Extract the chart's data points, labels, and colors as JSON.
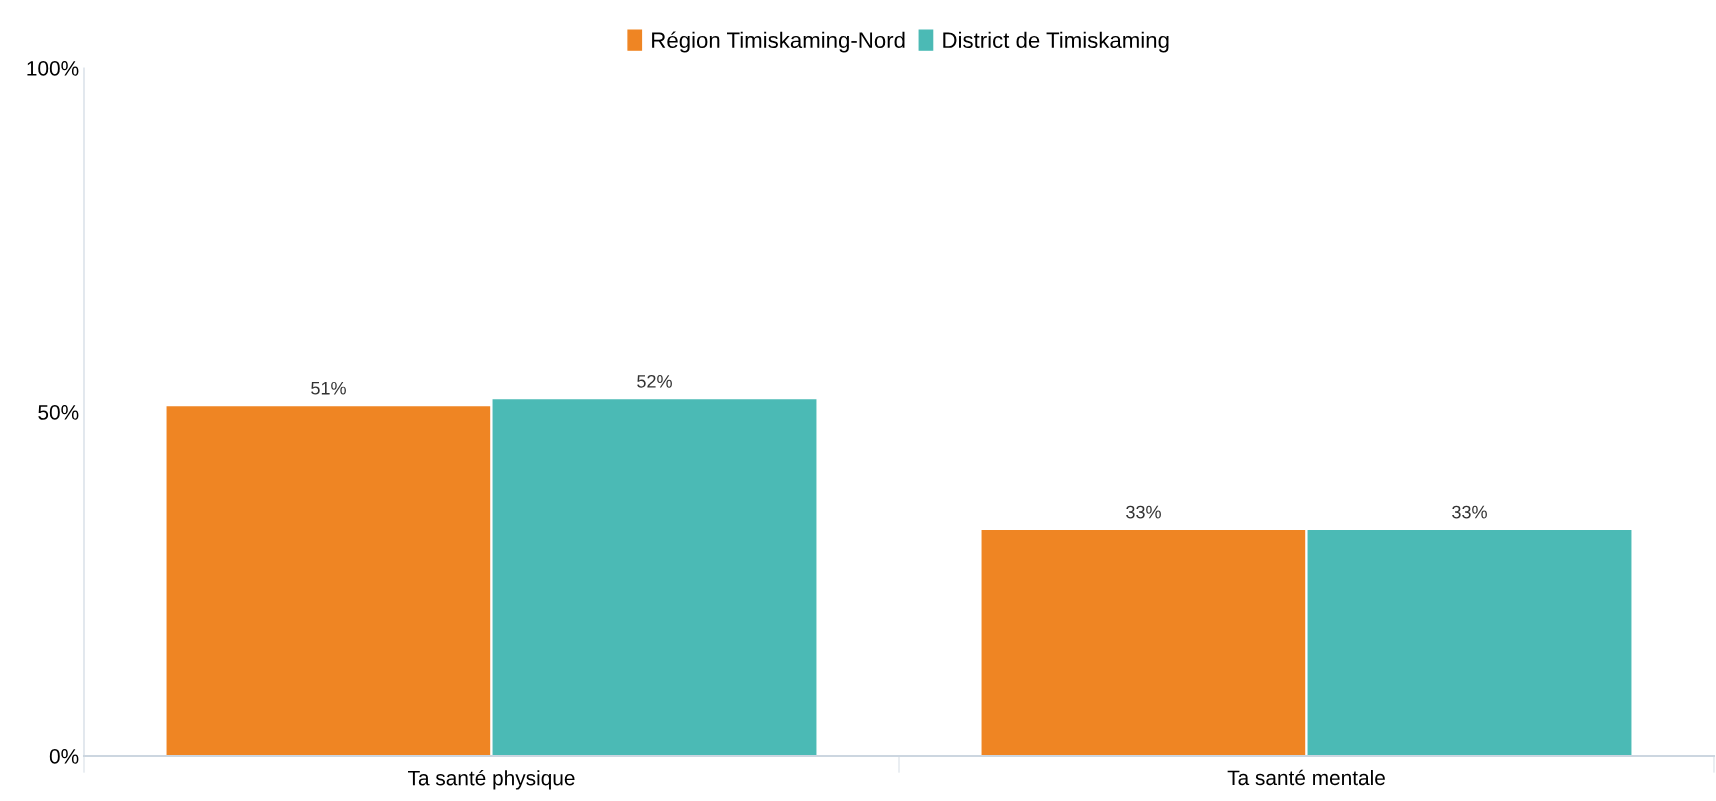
{
  "chart_data": {
    "type": "bar",
    "categories": [
      "Ta santé physique",
      "Ta santé mentale"
    ],
    "series": [
      {
        "name": "Région Timiskaming-Nord",
        "color": "#ef8523",
        "values": [
          51,
          33
        ],
        "value_labels": [
          "51%",
          "33%"
        ]
      },
      {
        "name": "District de Timiskaming",
        "color": "#4bbab5",
        "values": [
          52,
          33
        ],
        "value_labels": [
          "52%",
          "33%"
        ]
      }
    ],
    "ylim": [
      0,
      100
    ],
    "yticks": [
      {
        "value": 0,
        "label": "0%"
      },
      {
        "value": 50,
        "label": "50%"
      },
      {
        "value": 100,
        "label": "100%"
      }
    ],
    "grid": false,
    "legend": "top"
  }
}
